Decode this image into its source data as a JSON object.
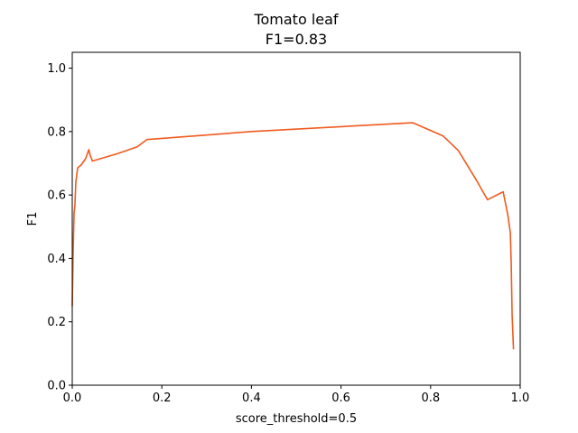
{
  "chart_data": {
    "type": "line",
    "title": "Tomato leaf",
    "subtitle": "F1=0.83",
    "xlabel": "score_threshold=0.5",
    "ylabel": "F1",
    "xlim": [
      0.0,
      1.0
    ],
    "ylim": [
      0.0,
      1.05
    ],
    "grid": false,
    "x_ticks": [
      0.0,
      0.2,
      0.4,
      0.6,
      0.8,
      1.0
    ],
    "x_tick_labels": [
      "0.0",
      "0.2",
      "0.4",
      "0.6",
      "0.8",
      "1.0"
    ],
    "y_ticks": [
      0.0,
      0.2,
      0.4,
      0.6,
      0.8,
      1.0
    ],
    "y_tick_labels": [
      "0.0",
      "0.2",
      "0.4",
      "0.6",
      "0.8",
      "1.0"
    ],
    "series": [
      {
        "color": "#f05a1e",
        "x": [
          0.0,
          0.002,
          0.004,
          0.006,
          0.008,
          0.012,
          0.02,
          0.03,
          0.037,
          0.04,
          0.045,
          0.1,
          0.145,
          0.167,
          0.4,
          0.76,
          0.828,
          0.862,
          0.905,
          0.927,
          0.962,
          0.972,
          0.978,
          0.98,
          0.981,
          0.982,
          0.985
        ],
        "y": [
          0.25,
          0.42,
          0.54,
          0.57,
          0.64,
          0.685,
          0.695,
          0.715,
          0.743,
          0.725,
          0.707,
          0.73,
          0.752,
          0.775,
          0.8,
          0.828,
          0.786,
          0.74,
          0.64,
          0.585,
          0.61,
          0.54,
          0.48,
          0.38,
          0.3,
          0.22,
          0.115
        ]
      }
    ]
  }
}
